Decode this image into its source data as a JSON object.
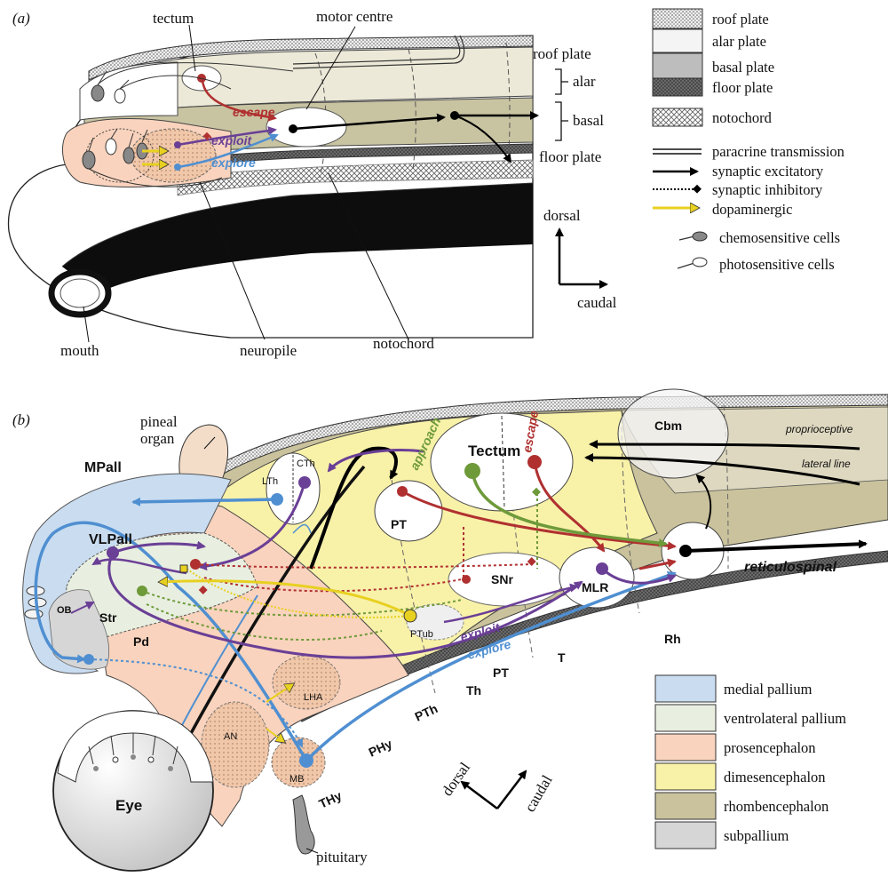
{
  "panel_a": {
    "panel_label": "(a)",
    "labels": {
      "tectum": "tectum",
      "motor_centre": "motor centre",
      "roof_plate": "roof plate",
      "alar": "alar",
      "basal": "basal",
      "floor_plate": "floor plate",
      "mouth": "mouth",
      "neuropile": "neuropile",
      "notochord": "notochord"
    },
    "pathways": {
      "escape": "escape",
      "exploit": "exploit",
      "explore": "explore"
    },
    "axes": {
      "dorsal": "dorsal",
      "caudal": "caudal"
    },
    "legend": [
      {
        "text": "roof plate"
      },
      {
        "text": "alar plate"
      },
      {
        "text": "basal plate"
      },
      {
        "text": "floor plate"
      },
      {
        "text": "notochord"
      },
      {
        "text": "paracrine transmission"
      },
      {
        "text": "synaptic excitatory"
      },
      {
        "text": "synaptic inhibitory"
      },
      {
        "text": "dopaminergic"
      },
      {
        "text": "chemosensitive cells"
      },
      {
        "text": "photosensitive cells"
      }
    ]
  },
  "panel_b": {
    "panel_label": "(b)",
    "labels": {
      "pineal": "pineal",
      "organ": "organ",
      "mpall": "MPall",
      "vlpall": "VLPall",
      "lth": "LTh",
      "cth": "CTh",
      "pt_upper": "PT",
      "tectum": "Tectum",
      "cbm": "Cbm",
      "proprioceptive": "proprioceptive",
      "lateral_line": "lateral line",
      "snr": "SNr",
      "mlr": "MLR",
      "reticulospinal": "reticulospinal",
      "ob": "OB",
      "str": "Str",
      "pd": "Pd",
      "ptub": "PTub",
      "lha": "LHA",
      "an": "AN",
      "mb": "MB",
      "eye": "Eye",
      "pituitary": "pituitary",
      "thy": "THy",
      "phy": "PHy",
      "pth": "PTh",
      "th": "Th",
      "pt_lower": "PT",
      "t": "T",
      "rh": "Rh"
    },
    "pathways": {
      "approach": "approach",
      "escape": "escape",
      "exploit": "exploit",
      "explore": "explore"
    },
    "axes": {
      "dorsal": "dorsal",
      "caudal": "caudal"
    },
    "legend": [
      {
        "text": "medial pallium",
        "color": "#c9dcf0"
      },
      {
        "text": "ventrolateral pallium",
        "color": "#e8efe0"
      },
      {
        "text": "prosencephalon",
        "color": "#f9d3bd"
      },
      {
        "text": "dimesencephalon",
        "color": "#f8f1a8"
      },
      {
        "text": "rhombencephalon",
        "color": "#c9c29c"
      },
      {
        "text": "subpallium",
        "color": "#d6d6d6"
      }
    ]
  },
  "colors": {
    "escape": "#b03030",
    "exploit": "#6a3f96",
    "explore": "#4f8fd1",
    "approach": "#6e9a3a",
    "dopaminergic": "#e8d020"
  }
}
